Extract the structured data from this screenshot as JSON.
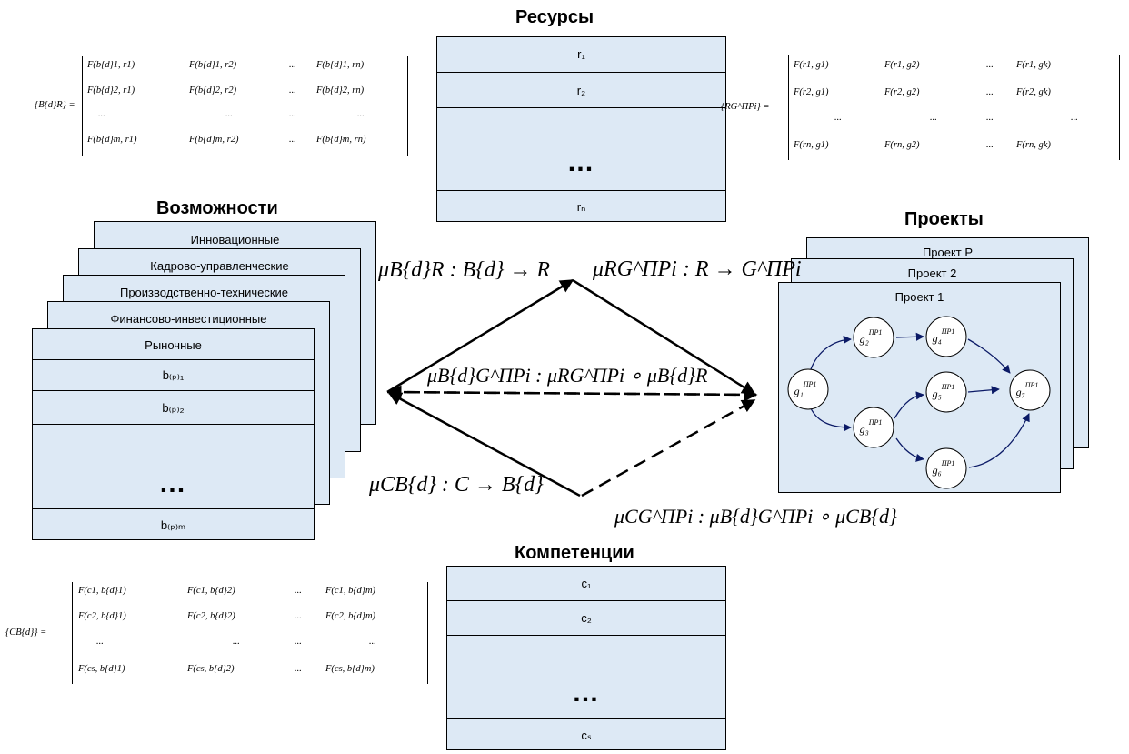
{
  "resources": {
    "title": "Ресурсы",
    "rows": [
      "r₁",
      "r₂",
      "…",
      "rₙ"
    ]
  },
  "capabilities": {
    "title": "Возможности",
    "cards": [
      "Инновационные",
      "Кадрово-управленческие",
      "Производственно-технические",
      "Финансово-инвестиционные",
      "Рыночные"
    ],
    "rows": [
      "b₍ₚ₎₁",
      "b₍ₚ₎₂",
      "…",
      "b₍ₚ₎ₘ"
    ]
  },
  "projects": {
    "title": "Проекты",
    "cards": [
      "Проект P",
      "Проект 2",
      "Проект 1"
    ],
    "nodes": [
      "g₁",
      "g₂",
      "g₃",
      "g₄",
      "g₅",
      "g₆",
      "g₇"
    ],
    "node_sup": "ПР1"
  },
  "competencies": {
    "title": "Компетенции",
    "rows": [
      "c₁",
      "c₂",
      "…",
      "cₛ"
    ]
  },
  "matrices": {
    "br": {
      "lhs": "{B{d}R} =",
      "rows": [
        [
          "F(b{d}1, r1)",
          "F(b{d}1, r2)",
          "...",
          "F(b{d}1, rn)"
        ],
        [
          "F(b{d}2, r1)",
          "F(b{d}2, r2)",
          "...",
          "F(b{d}2, rn)"
        ],
        [
          "...",
          "...",
          "...",
          "..."
        ],
        [
          "F(b{d}m, r1)",
          "F(b{d}m, r2)",
          "...",
          "F(b{d}m, rn)"
        ]
      ]
    },
    "rg": {
      "lhs": "{RG^ПРi} =",
      "rows": [
        [
          "F(r1, g1)",
          "F(r1, g2)",
          "...",
          "F(r1, gk)"
        ],
        [
          "F(r2, g1)",
          "F(r2, g2)",
          "...",
          "F(r2, gk)"
        ],
        [
          "...",
          "...",
          "...",
          "..."
        ],
        [
          "F(rn, g1)",
          "F(rn, g2)",
          "...",
          "F(rn, gk)"
        ]
      ]
    },
    "cb": {
      "lhs": "{CB{d}} =",
      "rows": [
        [
          "F(c1, b{d}1)",
          "F(c1, b{d}2)",
          "...",
          "F(c1, b{d}m)"
        ],
        [
          "F(c2, b{d}1)",
          "F(c2, b{d}2)",
          "...",
          "F(c2, b{d}m)"
        ],
        [
          "...",
          "...",
          "...",
          "..."
        ],
        [
          "F(cs, b{d}1)",
          "F(cs, b{d}2)",
          "...",
          "F(cs, b{d}m)"
        ]
      ]
    }
  },
  "formulas": {
    "mu_br": "μB{d}R : B{d} → R",
    "mu_rg": "μRG^ПРi : R → G^ПРi",
    "mu_bg": "μB{d}G^ПРi : μRG^ПРi ∘ μB{d}R",
    "mu_cb": "μCB{d} : C → B{d}",
    "mu_cg": "μCG^ПРi : μB{d}G^ПРi ∘ μCB{d}"
  }
}
